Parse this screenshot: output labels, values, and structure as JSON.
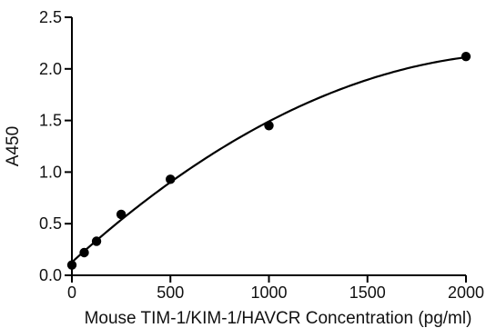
{
  "chart_data": {
    "type": "scatter",
    "title": "",
    "xlabel": "Mouse TIM-1/KIM-1/HAVCR Concentration (pg/ml)",
    "ylabel": "A450",
    "xlim": [
      0,
      2000
    ],
    "ylim": [
      0,
      2.5
    ],
    "x_ticks": [
      0,
      500,
      1000,
      1500,
      2000
    ],
    "y_ticks": [
      0.0,
      0.5,
      1.0,
      1.5,
      2.0,
      2.5
    ],
    "x_tick_labels": [
      "0",
      "500",
      "1000",
      "1500",
      "2000"
    ],
    "y_tick_labels": [
      "0.0",
      "0.5",
      "1.0",
      "1.5",
      "2.0",
      "2.5"
    ],
    "grid": false,
    "series": [
      {
        "x": [
          0,
          62.5,
          125,
          250,
          500,
          1000,
          2000
        ],
        "y": [
          0.1,
          0.22,
          0.33,
          0.59,
          0.93,
          1.45,
          2.12
        ],
        "fit_curve": true
      }
    ]
  }
}
